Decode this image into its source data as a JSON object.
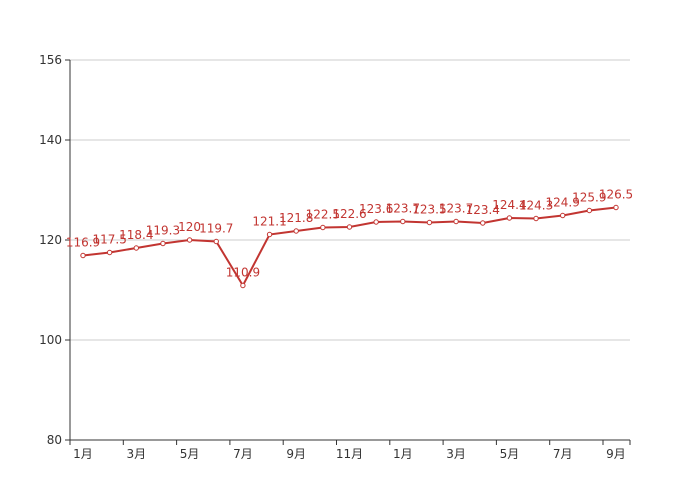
{
  "chart_data": {
    "type": "line",
    "title": "",
    "xlabel": "",
    "ylabel": "",
    "ylim": [
      80,
      156
    ],
    "yticks": [
      80,
      100,
      120,
      140,
      156
    ],
    "grid": true,
    "line_color": "#c23531",
    "axis_color": "#333333",
    "grid_color": "#cccccc",
    "x_tick_labels": [
      "1月",
      "3月",
      "5月",
      "7月",
      "9月",
      "11月",
      "1月",
      "3月",
      "5月",
      "7月",
      "9月"
    ],
    "series": [
      {
        "name": "",
        "values": [
          116.9,
          117.5,
          118.4,
          119.3,
          120,
          119.7,
          110.9,
          121.1,
          121.8,
          122.5,
          122.6,
          123.6,
          123.7,
          123.5,
          123.7,
          123.4,
          124.4,
          124.3,
          124.9,
          125.9,
          126.5
        ],
        "labels": [
          "116.9",
          "117.5",
          "118.4",
          "119.3",
          "120",
          "119.7",
          "110.9",
          "121.1",
          "121.8",
          "122.5",
          "122.6",
          "123.6",
          "123.7",
          "123.5",
          "123.7",
          "123.4",
          "124.4",
          "124.3",
          "124.9",
          "125.9",
          "126.5"
        ]
      }
    ]
  }
}
